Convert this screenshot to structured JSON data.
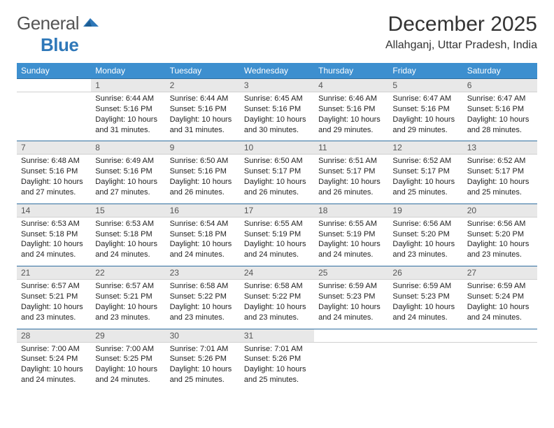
{
  "brand": {
    "word1": "General",
    "word2": "Blue"
  },
  "title": "December 2025",
  "location": "Allahganj, Uttar Pradesh, India",
  "colors": {
    "header_bg": "#3d8fcf",
    "header_text": "#ffffff",
    "date_bg": "#e8e8e8",
    "date_border_top": "#2f6ea0",
    "body_text": "#222222",
    "brand_gray": "#555555",
    "brand_blue": "#2f78b9"
  },
  "daynames": [
    "Sunday",
    "Monday",
    "Tuesday",
    "Wednesday",
    "Thursday",
    "Friday",
    "Saturday"
  ],
  "weeks": [
    {
      "dates": [
        "",
        "1",
        "2",
        "3",
        "4",
        "5",
        "6"
      ],
      "cells": [
        null,
        {
          "sr": "Sunrise: 6:44 AM",
          "ss": "Sunset: 5:16 PM",
          "dl": "Daylight: 10 hours and 31 minutes."
        },
        {
          "sr": "Sunrise: 6:44 AM",
          "ss": "Sunset: 5:16 PM",
          "dl": "Daylight: 10 hours and 31 minutes."
        },
        {
          "sr": "Sunrise: 6:45 AM",
          "ss": "Sunset: 5:16 PM",
          "dl": "Daylight: 10 hours and 30 minutes."
        },
        {
          "sr": "Sunrise: 6:46 AM",
          "ss": "Sunset: 5:16 PM",
          "dl": "Daylight: 10 hours and 29 minutes."
        },
        {
          "sr": "Sunrise: 6:47 AM",
          "ss": "Sunset: 5:16 PM",
          "dl": "Daylight: 10 hours and 29 minutes."
        },
        {
          "sr": "Sunrise: 6:47 AM",
          "ss": "Sunset: 5:16 PM",
          "dl": "Daylight: 10 hours and 28 minutes."
        }
      ]
    },
    {
      "dates": [
        "7",
        "8",
        "9",
        "10",
        "11",
        "12",
        "13"
      ],
      "cells": [
        {
          "sr": "Sunrise: 6:48 AM",
          "ss": "Sunset: 5:16 PM",
          "dl": "Daylight: 10 hours and 27 minutes."
        },
        {
          "sr": "Sunrise: 6:49 AM",
          "ss": "Sunset: 5:16 PM",
          "dl": "Daylight: 10 hours and 27 minutes."
        },
        {
          "sr": "Sunrise: 6:50 AM",
          "ss": "Sunset: 5:16 PM",
          "dl": "Daylight: 10 hours and 26 minutes."
        },
        {
          "sr": "Sunrise: 6:50 AM",
          "ss": "Sunset: 5:17 PM",
          "dl": "Daylight: 10 hours and 26 minutes."
        },
        {
          "sr": "Sunrise: 6:51 AM",
          "ss": "Sunset: 5:17 PM",
          "dl": "Daylight: 10 hours and 26 minutes."
        },
        {
          "sr": "Sunrise: 6:52 AM",
          "ss": "Sunset: 5:17 PM",
          "dl": "Daylight: 10 hours and 25 minutes."
        },
        {
          "sr": "Sunrise: 6:52 AM",
          "ss": "Sunset: 5:17 PM",
          "dl": "Daylight: 10 hours and 25 minutes."
        }
      ]
    },
    {
      "dates": [
        "14",
        "15",
        "16",
        "17",
        "18",
        "19",
        "20"
      ],
      "cells": [
        {
          "sr": "Sunrise: 6:53 AM",
          "ss": "Sunset: 5:18 PM",
          "dl": "Daylight: 10 hours and 24 minutes."
        },
        {
          "sr": "Sunrise: 6:53 AM",
          "ss": "Sunset: 5:18 PM",
          "dl": "Daylight: 10 hours and 24 minutes."
        },
        {
          "sr": "Sunrise: 6:54 AM",
          "ss": "Sunset: 5:18 PM",
          "dl": "Daylight: 10 hours and 24 minutes."
        },
        {
          "sr": "Sunrise: 6:55 AM",
          "ss": "Sunset: 5:19 PM",
          "dl": "Daylight: 10 hours and 24 minutes."
        },
        {
          "sr": "Sunrise: 6:55 AM",
          "ss": "Sunset: 5:19 PM",
          "dl": "Daylight: 10 hours and 24 minutes."
        },
        {
          "sr": "Sunrise: 6:56 AM",
          "ss": "Sunset: 5:20 PM",
          "dl": "Daylight: 10 hours and 23 minutes."
        },
        {
          "sr": "Sunrise: 6:56 AM",
          "ss": "Sunset: 5:20 PM",
          "dl": "Daylight: 10 hours and 23 minutes."
        }
      ]
    },
    {
      "dates": [
        "21",
        "22",
        "23",
        "24",
        "25",
        "26",
        "27"
      ],
      "cells": [
        {
          "sr": "Sunrise: 6:57 AM",
          "ss": "Sunset: 5:21 PM",
          "dl": "Daylight: 10 hours and 23 minutes."
        },
        {
          "sr": "Sunrise: 6:57 AM",
          "ss": "Sunset: 5:21 PM",
          "dl": "Daylight: 10 hours and 23 minutes."
        },
        {
          "sr": "Sunrise: 6:58 AM",
          "ss": "Sunset: 5:22 PM",
          "dl": "Daylight: 10 hours and 23 minutes."
        },
        {
          "sr": "Sunrise: 6:58 AM",
          "ss": "Sunset: 5:22 PM",
          "dl": "Daylight: 10 hours and 23 minutes."
        },
        {
          "sr": "Sunrise: 6:59 AM",
          "ss": "Sunset: 5:23 PM",
          "dl": "Daylight: 10 hours and 24 minutes."
        },
        {
          "sr": "Sunrise: 6:59 AM",
          "ss": "Sunset: 5:23 PM",
          "dl": "Daylight: 10 hours and 24 minutes."
        },
        {
          "sr": "Sunrise: 6:59 AM",
          "ss": "Sunset: 5:24 PM",
          "dl": "Daylight: 10 hours and 24 minutes."
        }
      ]
    },
    {
      "dates": [
        "28",
        "29",
        "30",
        "31",
        "",
        "",
        ""
      ],
      "cells": [
        {
          "sr": "Sunrise: 7:00 AM",
          "ss": "Sunset: 5:24 PM",
          "dl": "Daylight: 10 hours and 24 minutes."
        },
        {
          "sr": "Sunrise: 7:00 AM",
          "ss": "Sunset: 5:25 PM",
          "dl": "Daylight: 10 hours and 24 minutes."
        },
        {
          "sr": "Sunrise: 7:01 AM",
          "ss": "Sunset: 5:26 PM",
          "dl": "Daylight: 10 hours and 25 minutes."
        },
        {
          "sr": "Sunrise: 7:01 AM",
          "ss": "Sunset: 5:26 PM",
          "dl": "Daylight: 10 hours and 25 minutes."
        },
        null,
        null,
        null
      ]
    }
  ]
}
